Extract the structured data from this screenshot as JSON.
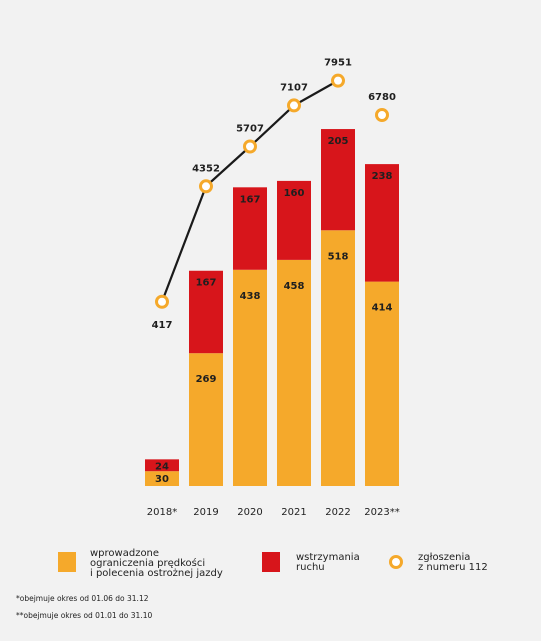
{
  "chart_data": {
    "type": "bar",
    "categories": [
      "2018*",
      "2019",
      "2020",
      "2021",
      "2022",
      "2023**"
    ],
    "series": [
      {
        "name": "wprowadzone ograniczenia prędkości i polecenia ostrożnej jazdy",
        "values": [
          30,
          269,
          438,
          458,
          518,
          414
        ],
        "color": "#f5a92b"
      },
      {
        "name": "wstrzymania ruchu",
        "values": [
          24,
          167,
          167,
          160,
          205,
          238
        ],
        "color": "#d7151b"
      }
    ],
    "line_series": {
      "name": "zgłoszenia z numeru 112",
      "values": [
        417,
        4352,
        5707,
        7107,
        7951,
        6780
      ],
      "connected_points": 5,
      "color": "#f5a92b"
    },
    "legend": {
      "items": [
        {
          "lines": [
            "wprowadzone",
            "ograniczenia prędkości",
            "i polecenia ostrożnej jazdy"
          ]
        },
        {
          "lines": [
            "wstrzymania",
            "ruchu"
          ]
        },
        {
          "lines": [
            "zgłoszenia",
            "z numeru 112"
          ]
        }
      ],
      "placement": "bottom"
    },
    "footnotes": [
      "*obejmuje okres od 01.06 do 31.12",
      "**obejmuje okres od 01.01 do 31.10"
    ]
  }
}
